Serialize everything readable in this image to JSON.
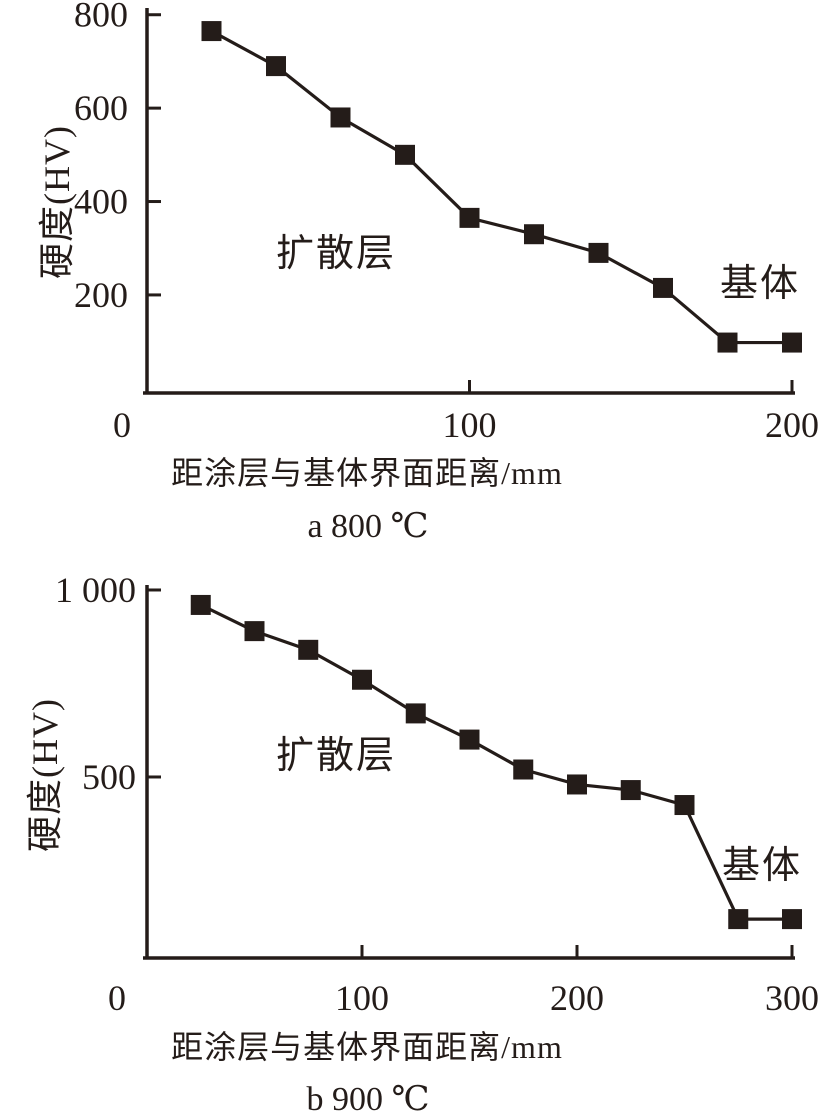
{
  "figure": {
    "background": "#ffffff",
    "ink_color": "#241c19",
    "marker": "filled-square"
  },
  "chart_data": [
    {
      "type": "line",
      "title": "a 800 ℃",
      "xlabel": "距涂层与基体界面距离/mm",
      "ylabel": "硬度(HV)",
      "x": [
        20,
        40,
        60,
        80,
        100,
        120,
        140,
        160,
        180,
        200
      ],
      "y": [
        765,
        690,
        580,
        500,
        365,
        330,
        290,
        215,
        98,
        98
      ],
      "xlim": [
        0,
        200
      ],
      "ylim": [
        0,
        800
      ],
      "grid": false,
      "legend": "none",
      "marker": "square",
      "xticks": [
        {
          "v": 0,
          "label": "0"
        },
        {
          "v": 100,
          "label": "100"
        },
        {
          "v": 200,
          "label": "200"
        }
      ],
      "yticks": [
        {
          "v": 200,
          "label": "200"
        },
        {
          "v": 400,
          "label": "400"
        },
        {
          "v": 600,
          "label": "600"
        },
        {
          "v": 800,
          "label": "800"
        }
      ],
      "annotations": {
        "diffusion_layer": "扩散层",
        "substrate": "基体"
      }
    },
    {
      "type": "line",
      "title": "b 900 ℃",
      "xlabel": "距涂层与基体界面距离/mm",
      "ylabel": "硬度(HV)",
      "x": [
        25,
        50,
        75,
        100,
        125,
        150,
        175,
        200,
        225,
        250,
        275,
        300
      ],
      "y": [
        960,
        890,
        840,
        760,
        670,
        600,
        520,
        480,
        465,
        425,
        120,
        120
      ],
      "xlim": [
        0,
        300
      ],
      "ylim": [
        0,
        1000
      ],
      "grid": false,
      "legend": "none",
      "marker": "square",
      "xticks": [
        {
          "v": 0,
          "label": "0"
        },
        {
          "v": 100,
          "label": "100"
        },
        {
          "v": 200,
          "label": "200"
        },
        {
          "v": 300,
          "label": "300"
        }
      ],
      "yticks": [
        {
          "v": 500,
          "label": "500"
        },
        {
          "v": 1000,
          "label": "1 000"
        }
      ],
      "annotations": {
        "diffusion_layer": "扩散层",
        "substrate": "基体"
      }
    }
  ]
}
